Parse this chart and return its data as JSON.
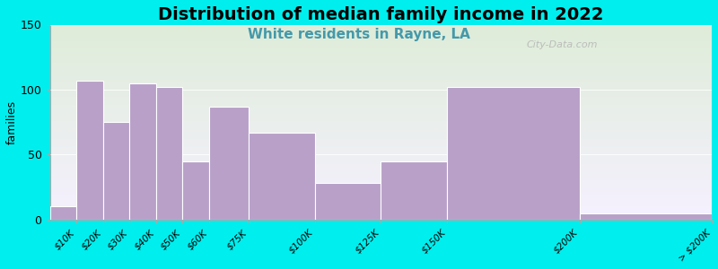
{
  "title": "Distribution of median family income in 2022",
  "subtitle": "White residents in Rayne, LA",
  "ylabel": "families",
  "bar_color": "#b8a0c8",
  "bar_edgecolor": "white",
  "background_outer": "#00eeee",
  "background_plot_top": "#deecd8",
  "background_plot_bottom": "#f5f0ff",
  "ylim": [
    0,
    150
  ],
  "yticks": [
    0,
    50,
    100,
    150
  ],
  "title_fontsize": 14,
  "subtitle_fontsize": 11,
  "subtitle_color": "#4499aa",
  "ylabel_fontsize": 9,
  "watermark": "City-Data.com",
  "bin_edges": [
    0,
    10,
    20,
    30,
    40,
    50,
    60,
    75,
    100,
    125,
    150,
    200,
    250
  ],
  "values": [
    10,
    107,
    75,
    105,
    102,
    45,
    87,
    67,
    28,
    45,
    102,
    5
  ],
  "tick_labels": [
    "$10K",
    "$20K",
    "$30K",
    "$40K",
    "$50K",
    "$60K",
    "$75K",
    "$100K",
    "$125K",
    "$150K",
    "$200K",
    "> $200K"
  ],
  "tick_label_fontsize": 7.5
}
